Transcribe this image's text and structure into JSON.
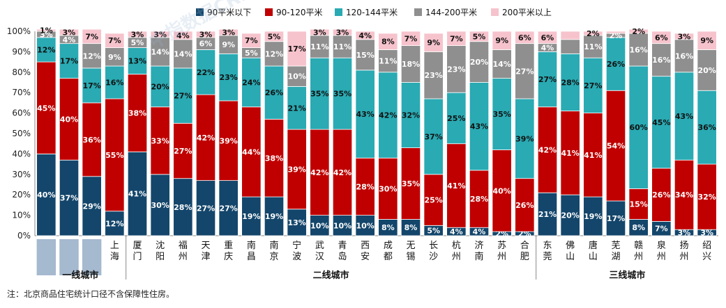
{
  "chart_data": {
    "type": "bar",
    "stacked": true,
    "ylim": [
      0,
      100
    ],
    "yticks": [
      "0%",
      "10%",
      "20%",
      "30%",
      "40%",
      "50%",
      "60%",
      "70%",
      "80%",
      "90%",
      "100%"
    ],
    "legend_position": "top",
    "series": [
      {
        "name": "90平米以下",
        "color": "#14466b"
      },
      {
        "name": "90-120平米",
        "color": "#c00000"
      },
      {
        "name": "120-144平米",
        "color": "#2aaab3"
      },
      {
        "name": "144-200平米",
        "color": "#8f8f8f"
      },
      {
        "name": "200平米以上",
        "color": "#f6c3cc"
      }
    ],
    "categories": [
      {
        "label": "",
        "values": [
          40,
          45,
          12,
          3,
          1
        ],
        "labels": [
          "40%",
          "45%",
          "12%",
          "3%",
          "1%"
        ]
      },
      {
        "label": "",
        "values": [
          37,
          40,
          17,
          4,
          3
        ],
        "labels": [
          "37%",
          "40%",
          "17%",
          "4%",
          "3%"
        ]
      },
      {
        "label": "",
        "values": [
          29,
          36,
          17,
          12,
          7
        ],
        "labels": [
          "29%",
          "36%",
          "17%",
          "12%",
          "7%"
        ]
      },
      {
        "label": "上海",
        "values": [
          12,
          55,
          16,
          9,
          7
        ],
        "labels": [
          "12%",
          "55%",
          "16%",
          "9%",
          "7%"
        ]
      },
      {
        "label": "厦门",
        "values": [
          41,
          38,
          13,
          5,
          3
        ],
        "labels": [
          "41%",
          "38%",
          "13%",
          "5%",
          "3%"
        ]
      },
      {
        "label": "沈阳",
        "values": [
          30,
          33,
          20,
          14,
          3
        ],
        "labels": [
          "30%",
          "33%",
          "20%",
          "14%",
          "3%"
        ]
      },
      {
        "label": "福州",
        "values": [
          28,
          27,
          27,
          14,
          4
        ],
        "labels": [
          "28%",
          "27%",
          "27%",
          "14%",
          "4%"
        ]
      },
      {
        "label": "天津",
        "values": [
          27,
          42,
          22,
          6,
          3
        ],
        "labels": [
          "27%",
          "42%",
          "22%",
          "6%",
          "3%"
        ]
      },
      {
        "label": "重庆",
        "values": [
          27,
          39,
          23,
          9,
          3
        ],
        "labels": [
          "27%",
          "39%",
          "23%",
          "9%",
          "3%"
        ]
      },
      {
        "label": "南昌",
        "values": [
          19,
          44,
          24,
          5,
          7
        ],
        "labels": [
          "19%",
          "44%",
          "24%",
          "5%",
          "7%"
        ]
      },
      {
        "label": "南京",
        "values": [
          19,
          38,
          26,
          12,
          5
        ],
        "labels": [
          "19%",
          "38%",
          "26%",
          "12%",
          "5%"
        ]
      },
      {
        "label": "宁波",
        "values": [
          13,
          39,
          21,
          10,
          17
        ],
        "labels": [
          "13%",
          "39%",
          "21%",
          "10%",
          "17%"
        ]
      },
      {
        "label": "武汉",
        "values": [
          10,
          42,
          35,
          11,
          3
        ],
        "labels": [
          "10%",
          "42%",
          "35%",
          "11%",
          "3%"
        ]
      },
      {
        "label": "青岛",
        "values": [
          10,
          42,
          35,
          11,
          3
        ],
        "labels": [
          "10%",
          "42%",
          "35%",
          "11%",
          "3%"
        ]
      },
      {
        "label": "西安",
        "values": [
          10,
          28,
          43,
          15,
          4
        ],
        "labels": [
          "10%",
          "28%",
          "43%",
          "15%",
          "4%"
        ]
      },
      {
        "label": "成都",
        "values": [
          8,
          30,
          42,
          11,
          8
        ],
        "labels": [
          "8%",
          "30%",
          "42%",
          "11%",
          "8%"
        ]
      },
      {
        "label": "无锡",
        "values": [
          8,
          35,
          32,
          18,
          7
        ],
        "labels": [
          "8%",
          "35%",
          "32%",
          "18%",
          "7%"
        ]
      },
      {
        "label": "长沙",
        "values": [
          5,
          25,
          37,
          23,
          9
        ],
        "labels": [
          "5%",
          "25%",
          "37%",
          "23%",
          "9%"
        ]
      },
      {
        "label": "杭州",
        "values": [
          4,
          41,
          25,
          23,
          7
        ],
        "labels": [
          "4%",
          "41%",
          "25%",
          "23%",
          "7%"
        ]
      },
      {
        "label": "济南",
        "values": [
          4,
          28,
          43,
          20,
          5
        ],
        "labels": [
          "4%",
          "28%",
          "43%",
          "20%",
          "5%"
        ]
      },
      {
        "label": "苏州",
        "values": [
          2,
          40,
          35,
          14,
          9
        ],
        "labels": [
          "2%",
          "40%",
          "35%",
          "14%",
          "9%"
        ]
      },
      {
        "label": "合肥",
        "values": [
          2,
          26,
          39,
          27,
          6
        ],
        "labels": [
          "2%",
          "26%",
          "39%",
          "27%",
          "6%"
        ]
      },
      {
        "label": "东莞",
        "values": [
          21,
          42,
          27,
          4,
          6
        ],
        "labels": [
          "21%",
          "42%",
          "27%",
          "4%",
          "6%"
        ]
      },
      {
        "label": "佛山",
        "values": [
          20,
          41,
          28,
          7,
          4
        ],
        "labels": [
          "20%",
          "41%",
          "28%",
          "",
          ""
        ]
      },
      {
        "label": "唐山",
        "values": [
          19,
          41,
          27,
          11,
          2
        ],
        "labels": [
          "19%",
          "41%",
          "27%",
          "11%",
          "2%"
        ]
      },
      {
        "label": "芜湖",
        "values": [
          17,
          54,
          26,
          2,
          1
        ],
        "labels": [
          "17%",
          "54%",
          "26%",
          "2%",
          ""
        ]
      },
      {
        "label": "赣州",
        "values": [
          8,
          15,
          60,
          16,
          2
        ],
        "labels": [
          "8%",
          "15%",
          "60%",
          "16%",
          "2%"
        ]
      },
      {
        "label": "泉州",
        "values": [
          7,
          26,
          45,
          16,
          6
        ],
        "labels": [
          "7%",
          "26%",
          "45%",
          "16%",
          "6%"
        ]
      },
      {
        "label": "扬州",
        "values": [
          3,
          34,
          43,
          16,
          3
        ],
        "labels": [
          "3%",
          "34%",
          "43%",
          "16%",
          "3%"
        ]
      },
      {
        "label": "绍兴",
        "values": [
          3,
          32,
          36,
          20,
          9
        ],
        "labels": [
          "3%",
          "32%",
          "36%",
          "20%",
          "9%"
        ]
      }
    ],
    "groups": [
      {
        "name": "一线城市",
        "from": 0,
        "to": 3
      },
      {
        "name": "二线城市",
        "from": 4,
        "to": 21
      },
      {
        "name": "三线城市",
        "from": 22,
        "to": 29
      }
    ]
  },
  "watermark": "中指数据CREIS",
  "note": "注：北京商品住宅统计口径不含保障性住房。"
}
